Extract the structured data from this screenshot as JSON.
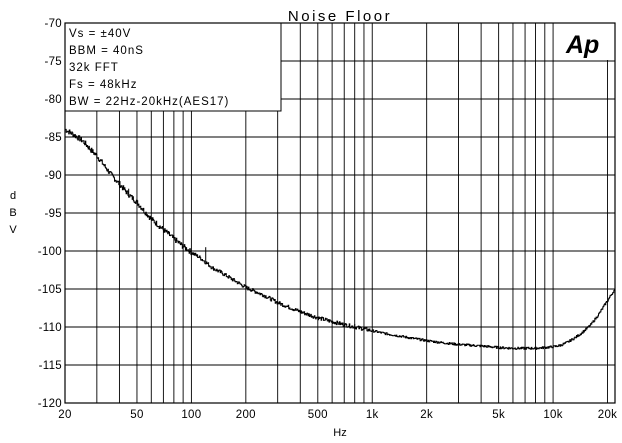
{
  "chart_data": {
    "type": "line",
    "title": "Noise Floor",
    "xlabel": "Hz",
    "ylabel": "dBV",
    "ylabel_chars": [
      "d",
      "B",
      "V"
    ],
    "x_scale": "log",
    "xlim": [
      20,
      22000
    ],
    "ylim": [
      -120,
      -70
    ],
    "grid": true,
    "legend": "none",
    "x_ticks": [
      {
        "value": 20,
        "label": "20"
      },
      {
        "value": 50,
        "label": "50"
      },
      {
        "value": 100,
        "label": "100"
      },
      {
        "value": 200,
        "label": "200"
      },
      {
        "value": 500,
        "label": "500"
      },
      {
        "value": 1000,
        "label": "1k"
      },
      {
        "value": 2000,
        "label": "2k"
      },
      {
        "value": 5000,
        "label": "5k"
      },
      {
        "value": 10000,
        "label": "10k"
      },
      {
        "value": 20000,
        "label": "20k"
      }
    ],
    "x_gridlines": [
      20,
      30,
      40,
      50,
      60,
      70,
      80,
      90,
      100,
      200,
      300,
      400,
      500,
      600,
      700,
      800,
      900,
      1000,
      2000,
      3000,
      4000,
      5000,
      6000,
      7000,
      8000,
      9000,
      10000,
      20000
    ],
    "y_ticks": [
      -70,
      -75,
      -80,
      -85,
      -90,
      -95,
      -100,
      -105,
      -110,
      -115,
      -120
    ],
    "annotations": [
      "Vs = ±40V",
      "BBM = 40nS",
      "32k FFT",
      "Fs = 48kHz",
      "BW = 22Hz-20kHz(AES17)"
    ],
    "series": [
      {
        "x": [
          20,
          22,
          25,
          28,
          30,
          33,
          36,
          40,
          45,
          50,
          55,
          60,
          70,
          80,
          90,
          100,
          110,
          120,
          130,
          150,
          170,
          200,
          250,
          300,
          400,
          500,
          600,
          700,
          800,
          1000,
          1200,
          1500,
          2000,
          2500,
          3000,
          4000,
          5000,
          6000,
          7000,
          8000,
          9000,
          10000,
          11000,
          12000,
          13000,
          14000,
          15000,
          16000,
          17000,
          18000,
          19000,
          20000,
          21000,
          22000
        ],
        "y": [
          -84.0,
          -84.6,
          -85.5,
          -86.8,
          -87.5,
          -88.8,
          -90.0,
          -91.2,
          -92.6,
          -93.6,
          -94.8,
          -95.8,
          -97.2,
          -98.4,
          -99.4,
          -100.2,
          -100.8,
          -101.5,
          -102.2,
          -103.0,
          -103.8,
          -104.8,
          -105.8,
          -106.8,
          -108.0,
          -108.8,
          -109.3,
          -109.7,
          -110.0,
          -110.5,
          -110.9,
          -111.3,
          -111.8,
          -112.1,
          -112.3,
          -112.5,
          -112.7,
          -112.8,
          -112.8,
          -112.8,
          -112.7,
          -112.6,
          -112.4,
          -112.0,
          -111.5,
          -111.0,
          -110.4,
          -109.8,
          -109.0,
          -108.2,
          -107.3,
          -106.5,
          -105.7,
          -105.0
        ]
      }
    ],
    "spikes": [
      {
        "x": 120,
        "y": -99.5
      },
      {
        "x": 45,
        "y": -91.8
      },
      {
        "x": 800,
        "y": -109.6
      }
    ]
  },
  "logo": {
    "text": "Ap",
    "color": "#000000"
  },
  "colors": {
    "line": "#000000",
    "grid": "#000000",
    "background": "#ffffff"
  }
}
